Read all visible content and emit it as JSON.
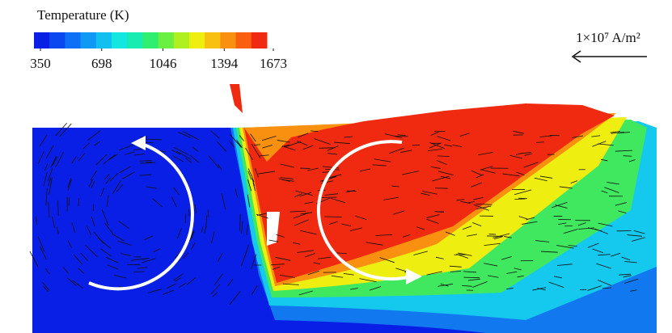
{
  "colorbar": {
    "title": "Temperature (K)",
    "ticks": [
      350,
      698,
      1046,
      1394,
      1673
    ],
    "colors": [
      "#0a1fe6",
      "#0c48f0",
      "#0e70f5",
      "#1098f5",
      "#12c0f0",
      "#15e6e0",
      "#18ecb0",
      "#30ee70",
      "#6af040",
      "#b0f020",
      "#eeee10",
      "#f8c010",
      "#fa9010",
      "#f86010",
      "#f02a10"
    ]
  },
  "reference_vector": {
    "label": "1×10⁷ A/m²"
  }
}
